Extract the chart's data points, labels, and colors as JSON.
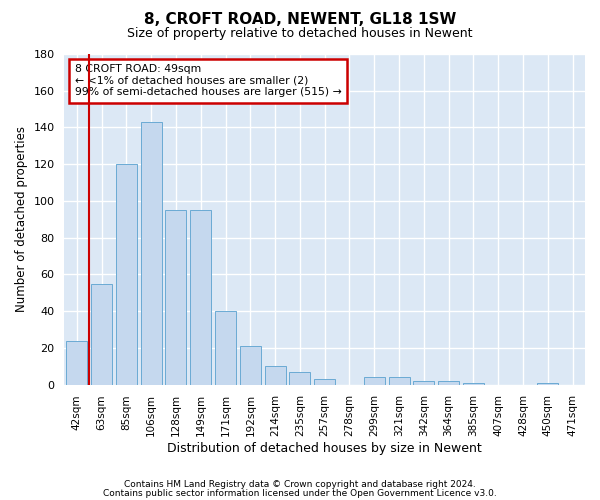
{
  "title": "8, CROFT ROAD, NEWENT, GL18 1SW",
  "subtitle": "Size of property relative to detached houses in Newent",
  "xlabel": "Distribution of detached houses by size in Newent",
  "ylabel": "Number of detached properties",
  "categories": [
    "42sqm",
    "63sqm",
    "85sqm",
    "106sqm",
    "128sqm",
    "149sqm",
    "171sqm",
    "192sqm",
    "214sqm",
    "235sqm",
    "257sqm",
    "278sqm",
    "299sqm",
    "321sqm",
    "342sqm",
    "364sqm",
    "385sqm",
    "407sqm",
    "428sqm",
    "450sqm",
    "471sqm"
  ],
  "values": [
    24,
    55,
    120,
    143,
    95,
    95,
    40,
    21,
    10,
    7,
    3,
    0,
    4,
    4,
    2,
    2,
    1,
    0,
    0,
    1,
    0
  ],
  "bar_color": "#c5d8ee",
  "bar_edge_color": "#6aaad4",
  "highlight_color": "#cc0000",
  "annotation_title": "8 CROFT ROAD: 49sqm",
  "annotation_line1": "← <1% of detached houses are smaller (2)",
  "annotation_line2": "99% of semi-detached houses are larger (515) →",
  "annotation_box_facecolor": "#ffffff",
  "annotation_box_edgecolor": "#cc0000",
  "ylim": [
    0,
    180
  ],
  "yticks": [
    0,
    20,
    40,
    60,
    80,
    100,
    120,
    140,
    160,
    180
  ],
  "background_color": "#dce8f5",
  "plot_bg_color": "#dce8f5",
  "footer_line1": "Contains HM Land Registry data © Crown copyright and database right 2024.",
  "footer_line2": "Contains public sector information licensed under the Open Government Licence v3.0."
}
